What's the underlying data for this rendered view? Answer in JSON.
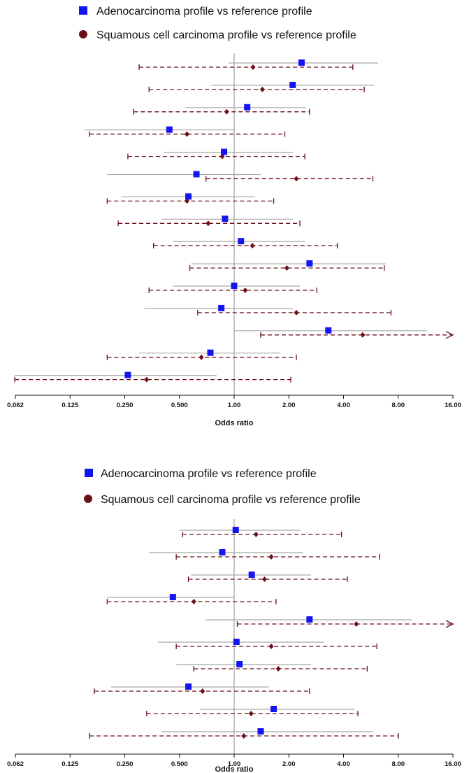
{
  "colors": {
    "adeno": "#1515f0",
    "squamous": "#6b1018",
    "adeno_ci": "#a8a8a8",
    "squamous_ci": "#6b1018",
    "reference_line": "#a8a8a8",
    "axis": "#111111"
  },
  "icons": {
    "adeno_marker": "square",
    "squamous_marker": "circle",
    "arrow": "open-arrowhead"
  },
  "chart_data": [
    {
      "type": "forest",
      "scale": "log2",
      "xlabel": "Odds ratio",
      "xticks": [
        "0.062",
        "0.125",
        "0.250",
        "0.500",
        "1.00",
        "2.00",
        "4.00",
        "8.00",
        "16.00"
      ],
      "xlim": [
        0.0625,
        16
      ],
      "reference_line": 1,
      "legend": [
        {
          "label": "Adenocarcinoma profile vs reference profile",
          "marker": "square"
        },
        {
          "label": "Squamous cell carcinoma  profile vs reference profile",
          "marker": "circle"
        }
      ],
      "series": [
        {
          "name": "Adenocarcinoma profile vs reference profile",
          "rows": [
            {
              "or": 2.35,
              "lo": 0.93,
              "hi": 6.2
            },
            {
              "or": 2.1,
              "lo": 0.75,
              "hi": 5.9
            },
            {
              "or": 1.18,
              "lo": 0.54,
              "hi": 2.48
            },
            {
              "or": 0.44,
              "lo": 0.15,
              "hi": 1.02
            },
            {
              "or": 0.88,
              "lo": 0.41,
              "hi": 2.1
            },
            {
              "or": 0.62,
              "lo": 0.2,
              "hi": 1.4
            },
            {
              "or": 0.56,
              "lo": 0.24,
              "hi": 1.3
            },
            {
              "or": 0.89,
              "lo": 0.4,
              "hi": 2.1
            },
            {
              "or": 1.09,
              "lo": 0.46,
              "hi": 2.45
            },
            {
              "or": 2.6,
              "lo": 0.58,
              "hi": 6.8
            },
            {
              "or": 1.0,
              "lo": 0.46,
              "hi": 2.3
            },
            {
              "or": 0.85,
              "lo": 0.32,
              "hi": 2.1
            },
            {
              "or": 3.3,
              "lo": 1.0,
              "hi": 11.5
            },
            {
              "or": 0.74,
              "lo": 0.3,
              "hi": 1.8
            },
            {
              "or": 0.26,
              "lo": 0.062,
              "hi": 0.8
            }
          ]
        },
        {
          "name": "Squamous cell carcinoma  profile vs reference profile",
          "rows": [
            {
              "or": 1.27,
              "lo": 0.3,
              "hi": 4.5
            },
            {
              "or": 1.43,
              "lo": 0.34,
              "hi": 5.2
            },
            {
              "or": 0.91,
              "lo": 0.28,
              "hi": 2.6
            },
            {
              "or": 0.55,
              "lo": 0.16,
              "hi": 1.9
            },
            {
              "or": 0.86,
              "lo": 0.26,
              "hi": 2.45
            },
            {
              "or": 2.2,
              "lo": 0.7,
              "hi": 5.8
            },
            {
              "or": 0.55,
              "lo": 0.2,
              "hi": 1.65
            },
            {
              "or": 0.72,
              "lo": 0.23,
              "hi": 2.3
            },
            {
              "or": 1.26,
              "lo": 0.36,
              "hi": 3.7
            },
            {
              "or": 1.95,
              "lo": 0.57,
              "hi": 6.7
            },
            {
              "or": 1.15,
              "lo": 0.34,
              "hi": 2.85
            },
            {
              "or": 2.2,
              "lo": 0.63,
              "hi": 7.3
            },
            {
              "or": 5.1,
              "lo": 1.4,
              "hi": 16,
              "arrow": true
            },
            {
              "or": 0.66,
              "lo": 0.2,
              "hi": 2.2
            },
            {
              "or": 0.33,
              "lo": 0.062,
              "hi": 2.05
            }
          ]
        }
      ]
    },
    {
      "type": "forest",
      "scale": "log2",
      "xlabel": "Odds ratio",
      "xticks": [
        "0.062",
        "0.125",
        "0.250",
        "0.500",
        "1.00",
        "2.00",
        "4.00",
        "8.00",
        "16.00"
      ],
      "xlim": [
        0.0625,
        16
      ],
      "reference_line": 1,
      "legend": [
        {
          "label": "Adenocarcinoma profile vs reference profile",
          "marker": "square"
        },
        {
          "label": "Squamous cell carcinoma  profile vs reference profile",
          "marker": "circle"
        }
      ],
      "series": [
        {
          "name": "Adenocarcinoma profile vs reference profile",
          "rows": [
            {
              "or": 1.02,
              "lo": 0.5,
              "hi": 2.3
            },
            {
              "or": 0.86,
              "lo": 0.34,
              "hi": 2.4
            },
            {
              "or": 1.25,
              "lo": 0.58,
              "hi": 2.65
            },
            {
              "or": 0.46,
              "lo": 0.2,
              "hi": 1.0
            },
            {
              "or": 2.6,
              "lo": 0.7,
              "hi": 9.5
            },
            {
              "or": 1.03,
              "lo": 0.38,
              "hi": 3.1
            },
            {
              "or": 1.07,
              "lo": 0.48,
              "hi": 2.65
            },
            {
              "or": 0.56,
              "lo": 0.21,
              "hi": 1.55
            },
            {
              "or": 1.65,
              "lo": 0.65,
              "hi": 4.6
            },
            {
              "or": 1.4,
              "lo": 0.4,
              "hi": 5.8
            }
          ]
        },
        {
          "name": "Squamous cell carcinoma  profile vs reference profile",
          "rows": [
            {
              "or": 1.32,
              "lo": 0.52,
              "hi": 3.9
            },
            {
              "or": 1.6,
              "lo": 0.48,
              "hi": 6.3
            },
            {
              "or": 1.47,
              "lo": 0.56,
              "hi": 4.2
            },
            {
              "or": 0.6,
              "lo": 0.2,
              "hi": 1.7
            },
            {
              "or": 4.7,
              "lo": 1.04,
              "hi": 16,
              "arrow": true
            },
            {
              "or": 1.6,
              "lo": 0.48,
              "hi": 6.1
            },
            {
              "or": 1.75,
              "lo": 0.6,
              "hi": 5.4
            },
            {
              "or": 0.67,
              "lo": 0.17,
              "hi": 2.6
            },
            {
              "or": 1.24,
              "lo": 0.33,
              "hi": 4.8
            },
            {
              "or": 1.13,
              "lo": 0.16,
              "hi": 8.0
            }
          ]
        }
      ]
    }
  ]
}
